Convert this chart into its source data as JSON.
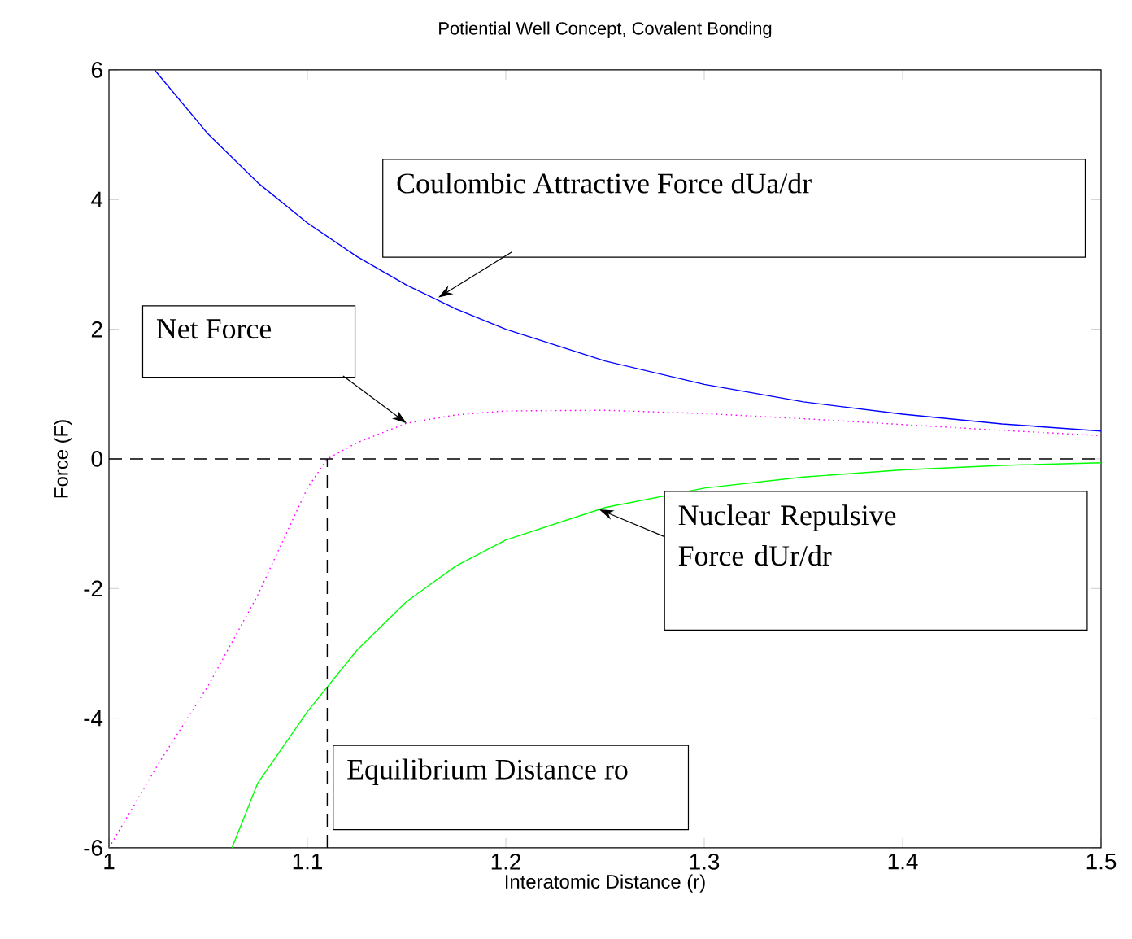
{
  "chart_data": {
    "type": "line",
    "title": "Potiential Well Concept, Covalent Bonding",
    "xlabel": "Interatomic Distance (r)",
    "ylabel": "Force (F)",
    "xlim": [
      1,
      1.5
    ],
    "ylim": [
      -6,
      6
    ],
    "xticks": [
      1,
      1.1,
      1.2,
      1.3,
      1.4,
      1.5
    ],
    "yticks": [
      -6,
      -4,
      -2,
      0,
      2,
      4,
      6
    ],
    "series": [
      {
        "color": "#0000ff",
        "line_style": "solid",
        "x": [
          1.023,
          1.05,
          1.075,
          1.1,
          1.125,
          1.15,
          1.175,
          1.2,
          1.25,
          1.3,
          1.35,
          1.4,
          1.45,
          1.5
        ],
        "values": [
          6,
          5.01,
          4.26,
          3.64,
          3.12,
          2.68,
          2.31,
          2.0,
          1.51,
          1.15,
          0.88,
          0.69,
          0.54,
          0.43
        ]
      },
      {
        "color": "#00ff00",
        "line_style": "solid",
        "x": [
          1.062,
          1.075,
          1.1,
          1.125,
          1.15,
          1.175,
          1.2,
          1.25,
          1.3,
          1.35,
          1.4,
          1.45,
          1.5
        ],
        "values": [
          -6,
          -5.0,
          -3.9,
          -2.95,
          -2.2,
          -1.65,
          -1.25,
          -0.75,
          -0.45,
          -0.28,
          -0.17,
          -0.1,
          -0.06
        ]
      },
      {
        "color": "#ff00ff",
        "line_style": "dotted",
        "x": [
          1,
          1.025,
          1.05,
          1.075,
          1.1,
          1.11,
          1.125,
          1.15,
          1.175,
          1.2,
          1.25,
          1.3,
          1.35,
          1.4,
          1.45,
          1.5
        ],
        "values": [
          -6,
          -4.7,
          -3.5,
          -2.1,
          -0.45,
          0,
          0.25,
          0.55,
          0.68,
          0.74,
          0.75,
          0.7,
          0.62,
          0.53,
          0.44,
          0.36
        ]
      },
      {
        "color": "#000000",
        "line_style": "dashed",
        "x": [
          1,
          1.5
        ],
        "values": [
          0,
          0
        ]
      },
      {
        "color": "#000000",
        "line_style": "dashed",
        "x": [
          1.11,
          1.11
        ],
        "values": [
          -6,
          0
        ]
      }
    ],
    "annotations": [
      "Coulombic Attractive Force dUa/dr",
      "Net Force",
      {
        "text": "Nuclear Repulsive Force dUr/dr",
        "x": 1.247,
        "y": -0.78
      },
      "Equilibrium Distance ro"
    ]
  }
}
